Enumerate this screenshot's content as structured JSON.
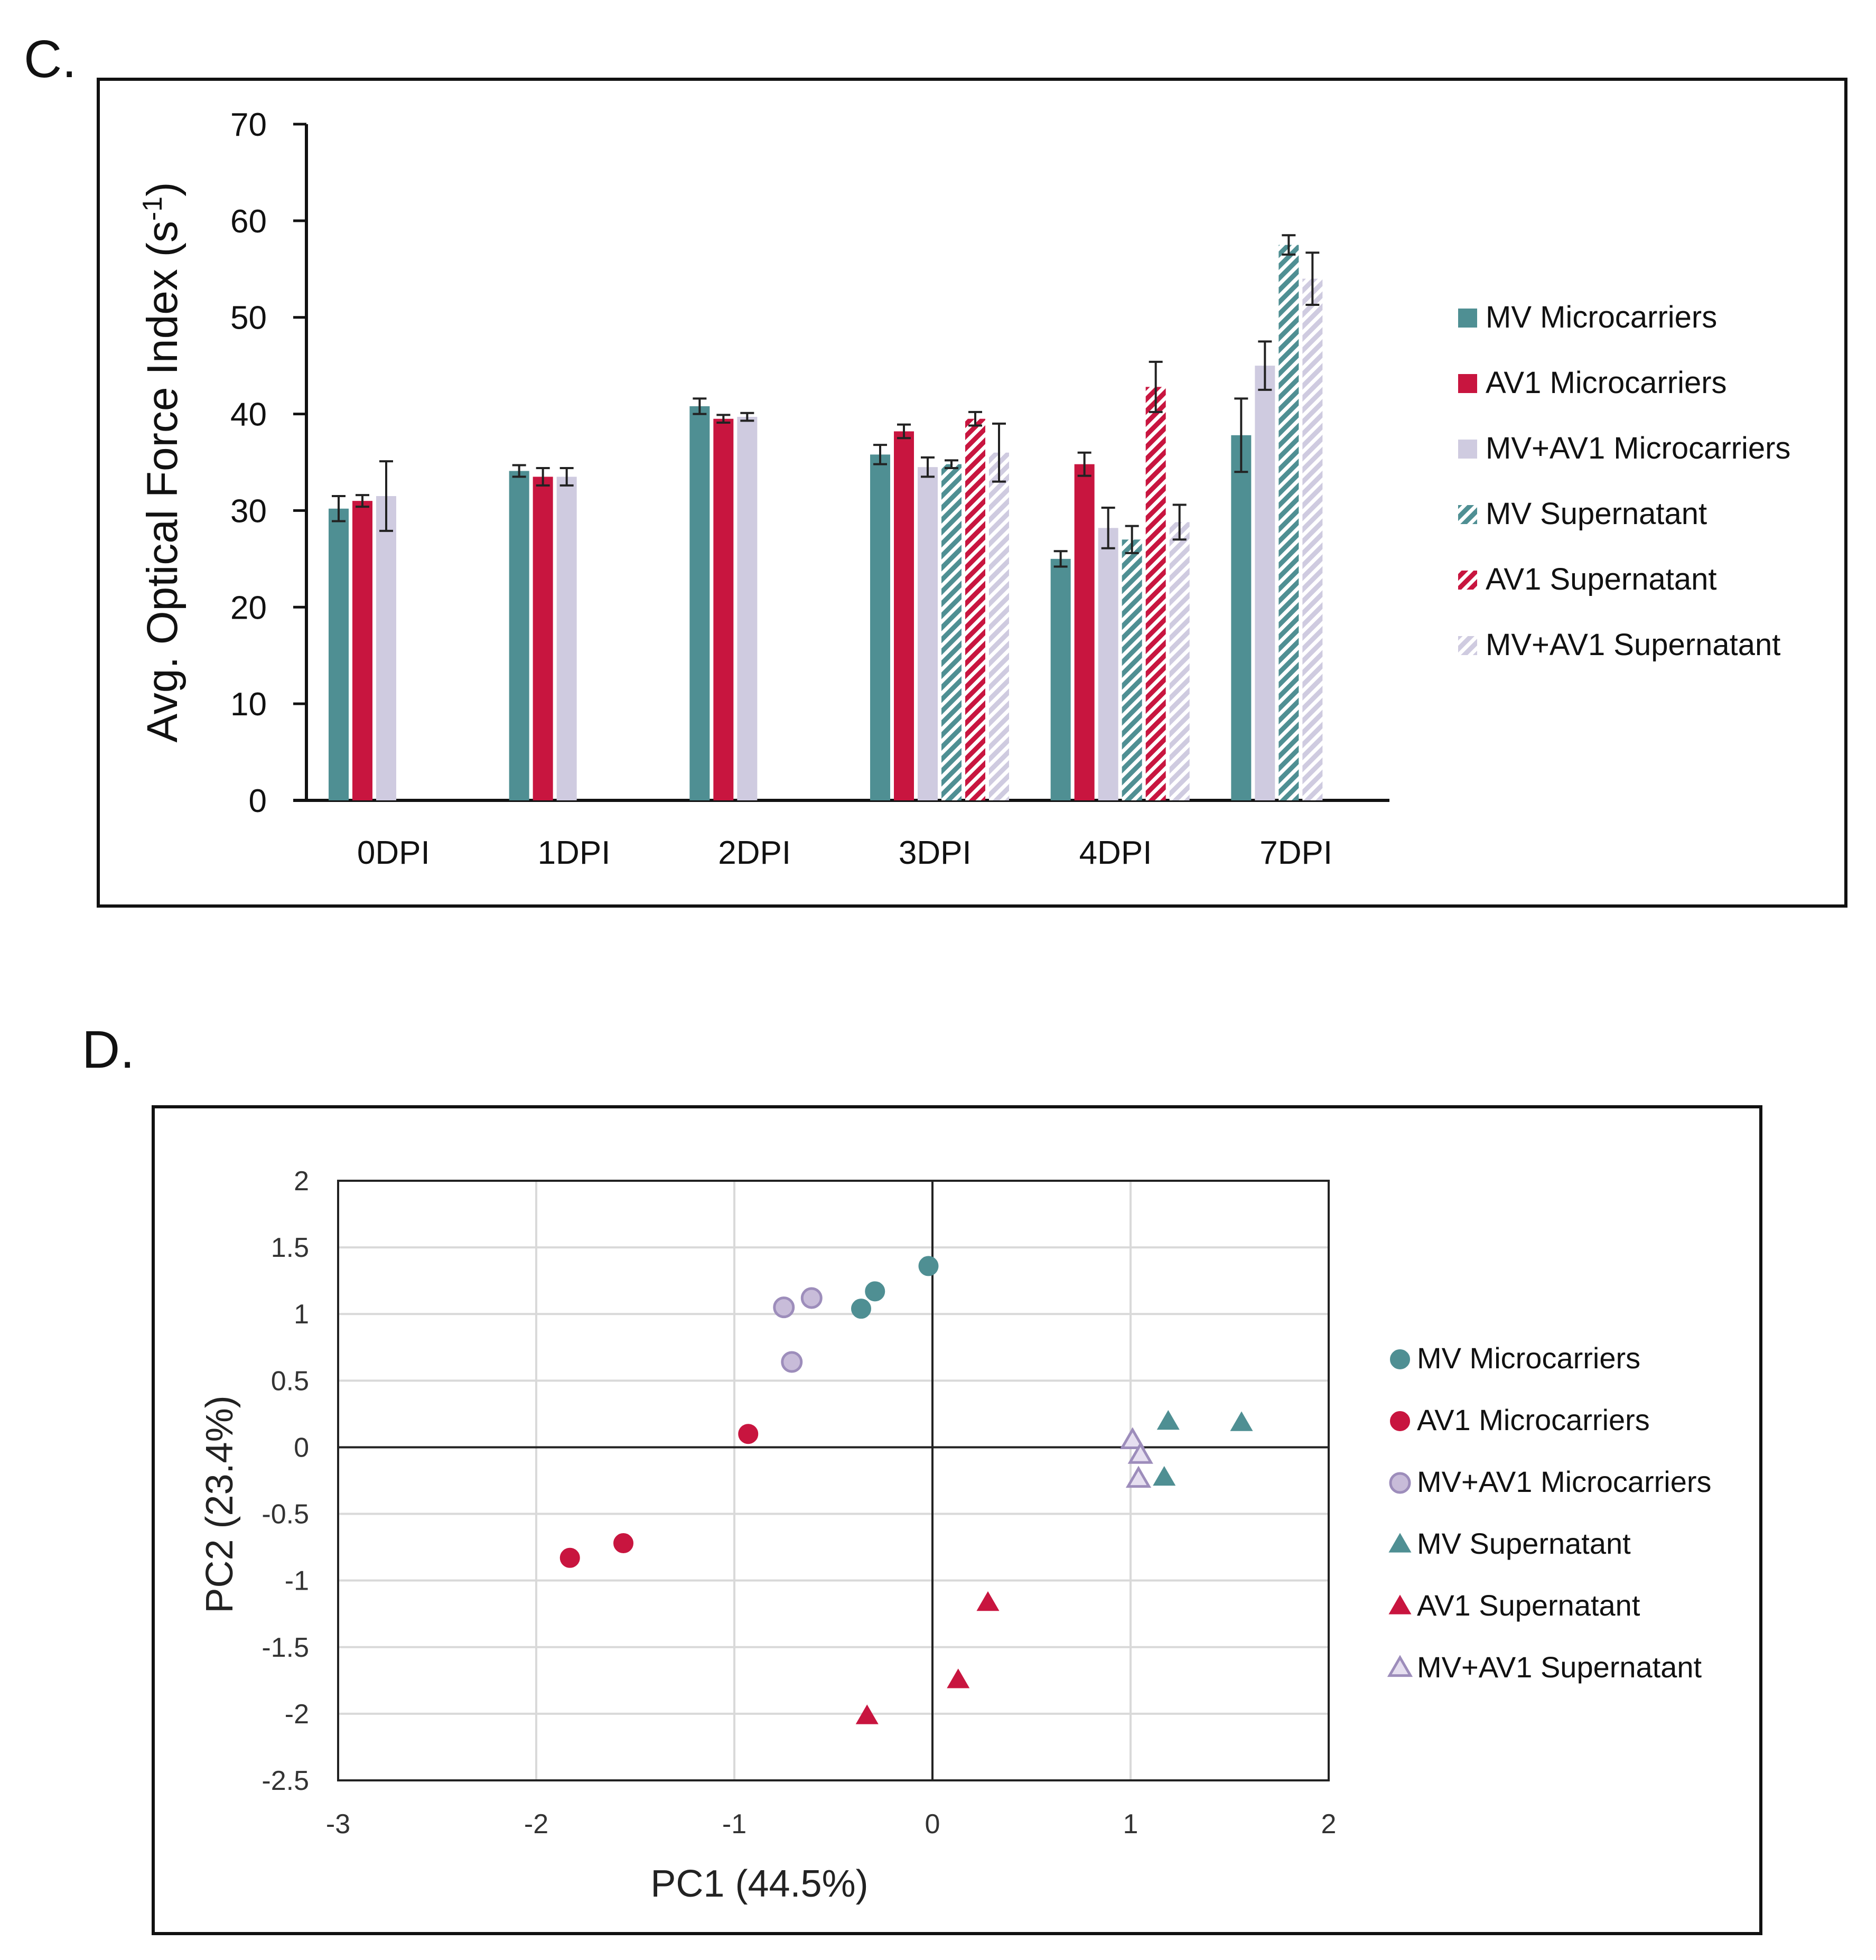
{
  "panels": {
    "c_label": "C.",
    "d_label": "D."
  },
  "colors": {
    "mv": "#4f8f93",
    "av1": "#c8153f",
    "mvav1": "#cfcbe0",
    "mvav1_marker_fill": "#c8bcd9",
    "mvav1_marker_stroke": "#9d8dbb"
  },
  "chart_data": [
    {
      "type": "bar",
      "panel": "C",
      "ylabel": "Avg. Optical Force Index (s",
      "ylabel_sup": "-1",
      "ylabel_close": ")",
      "ylim": [
        0,
        70
      ],
      "yticks": [
        0,
        10,
        20,
        30,
        40,
        50,
        60,
        70
      ],
      "categories": [
        "0DPI",
        "1DPI",
        "2DPI",
        "3DPI",
        "4DPI",
        "7DPI"
      ],
      "legend_position": "right",
      "series": [
        {
          "name": "MV Microcarriers",
          "key": "mv",
          "pattern": "solid",
          "values": [
            30.2,
            34.1,
            40.8,
            35.8,
            25.0,
            37.8
          ],
          "errors": [
            1.3,
            0.6,
            0.8,
            1.0,
            0.8,
            3.8
          ]
        },
        {
          "name": "AV1 Microcarriers",
          "key": "av1",
          "pattern": "solid",
          "values": [
            31.0,
            33.5,
            39.5,
            38.2,
            34.8,
            null
          ],
          "errors": [
            0.6,
            0.9,
            0.4,
            0.7,
            1.2,
            null
          ]
        },
        {
          "name": "MV+AV1 Microcarriers",
          "key": "mvav1",
          "pattern": "solid",
          "values": [
            31.5,
            33.5,
            39.7,
            34.5,
            28.2,
            45.0
          ],
          "errors": [
            3.6,
            0.9,
            0.4,
            1.0,
            2.1,
            2.5
          ]
        },
        {
          "name": "MV Supernatant",
          "key": "mv",
          "pattern": "hatch",
          "values": [
            null,
            null,
            null,
            34.8,
            27.0,
            57.5
          ],
          "errors": [
            null,
            null,
            null,
            0.4,
            1.4,
            1.0
          ]
        },
        {
          "name": "AV1 Supernatant",
          "key": "av1",
          "pattern": "hatch",
          "values": [
            null,
            null,
            null,
            39.5,
            42.8,
            null
          ],
          "errors": [
            null,
            null,
            null,
            0.7,
            2.6,
            null
          ]
        },
        {
          "name": "MV+AV1 Supernatant",
          "key": "mvav1",
          "pattern": "hatch",
          "values": [
            null,
            null,
            null,
            36.0,
            28.8,
            54.0
          ],
          "errors": [
            null,
            null,
            null,
            3.0,
            1.8,
            2.7
          ]
        }
      ]
    },
    {
      "type": "scatter",
      "panel": "D",
      "xlabel": "PC1 (44.5%)",
      "ylabel": "PC2 (23.4%)",
      "xlim": [
        -3,
        2
      ],
      "ylim": [
        -2.5,
        2
      ],
      "xticks": [
        -3,
        -2,
        -1,
        0,
        1,
        2
      ],
      "yticks": [
        -2.5,
        -2,
        -1.5,
        -1,
        -0.5,
        0,
        0.5,
        1,
        1.5,
        2
      ],
      "ytick_labels": [
        "-2.5",
        "-2",
        "-1.5",
        "-1",
        "-0.5",
        "0",
        "0.5",
        "1",
        "1.5",
        "2"
      ],
      "grid": true,
      "legend_position": "right",
      "series": [
        {
          "name": "MV Microcarriers",
          "marker": "circle",
          "color_key": "mv",
          "points": [
            [
              -0.02,
              1.36
            ],
            [
              -0.29,
              1.17
            ],
            [
              -0.36,
              1.04
            ]
          ]
        },
        {
          "name": "AV1 Microcarriers",
          "marker": "circle",
          "color_key": "av1",
          "points": [
            [
              -0.93,
              0.1
            ],
            [
              -1.56,
              -0.72
            ],
            [
              -1.83,
              -0.83
            ]
          ]
        },
        {
          "name": "MV+AV1 Microcarriers",
          "marker": "circle-open",
          "color_key": "mvav1",
          "points": [
            [
              -0.75,
              1.05
            ],
            [
              -0.61,
              1.12
            ],
            [
              -0.71,
              0.64
            ]
          ]
        },
        {
          "name": "MV Supernatant",
          "marker": "triangle",
          "color_key": "mv",
          "points": [
            [
              1.19,
              0.19
            ],
            [
              1.56,
              0.18
            ],
            [
              1.17,
              -0.23
            ]
          ]
        },
        {
          "name": "AV1 Supernatant",
          "marker": "triangle",
          "color_key": "av1",
          "points": [
            [
              0.28,
              -1.17
            ],
            [
              0.13,
              -1.75
            ],
            [
              -0.33,
              -2.02
            ]
          ]
        },
        {
          "name": "MV+AV1 Supernatant",
          "marker": "triangle-open",
          "color_key": "mvav1",
          "points": [
            [
              1.01,
              0.05
            ],
            [
              1.05,
              -0.06
            ],
            [
              1.04,
              -0.24
            ]
          ]
        }
      ]
    }
  ]
}
